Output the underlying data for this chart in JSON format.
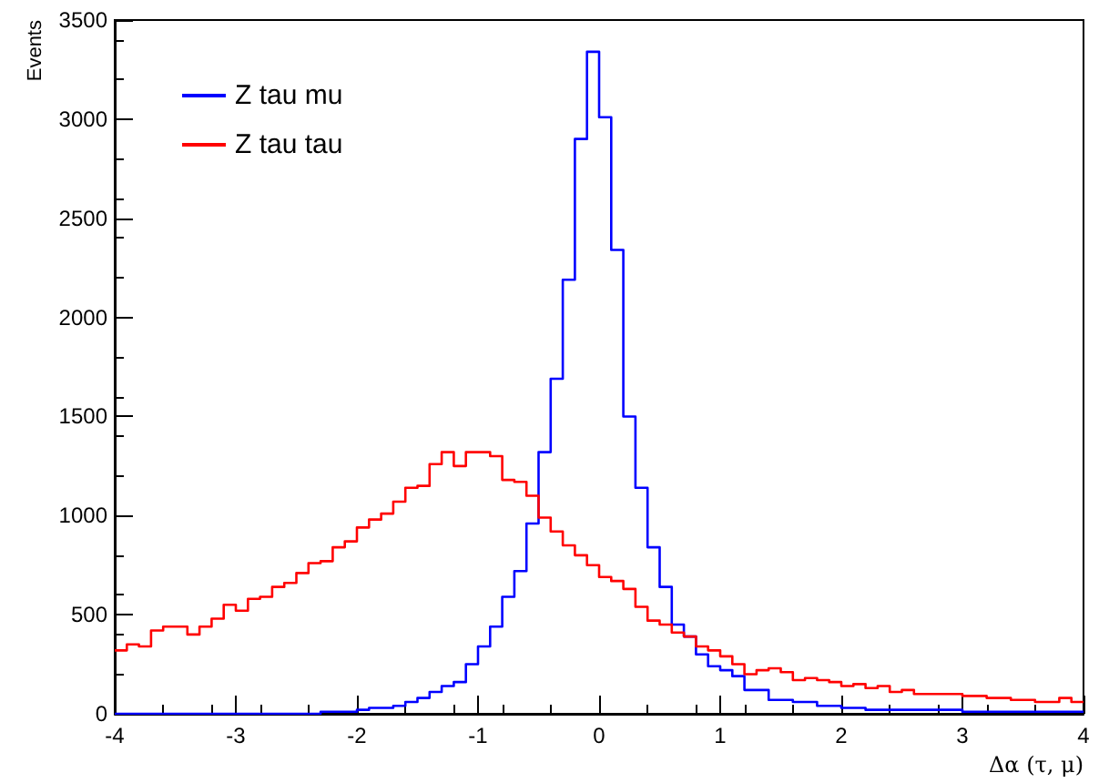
{
  "chart_data": {
    "type": "histogram",
    "xlabel": "Δα (τ, μ)",
    "ylabel": "Events",
    "bins": [
      -4.0,
      -3.9,
      -3.8,
      -3.7,
      -3.6,
      -3.5,
      -3.4,
      -3.3,
      -3.2,
      -3.1,
      -3.0,
      -2.9,
      -2.8,
      -2.7,
      -2.6,
      -2.5,
      -2.4,
      -2.3,
      -2.2,
      -2.1,
      -2.0,
      -1.9,
      -1.8,
      -1.7,
      -1.6,
      -1.5,
      -1.4,
      -1.3,
      -1.2,
      -1.1,
      -1.0,
      -0.9,
      -0.8,
      -0.7,
      -0.6,
      -0.5,
      -0.4,
      -0.3,
      -0.2,
      -0.1,
      0.0,
      0.1,
      0.2,
      0.3,
      0.4,
      0.5,
      0.6,
      0.7,
      0.8,
      0.9,
      1.0,
      1.1,
      1.2,
      1.3,
      1.4,
      1.5,
      1.6,
      1.7,
      1.8,
      1.9,
      2.0,
      2.1,
      2.2,
      2.3,
      2.4,
      2.5,
      2.6,
      2.7,
      2.8,
      2.9,
      3.0,
      3.1,
      3.2,
      3.3,
      3.4,
      3.5,
      3.6,
      3.7,
      3.8,
      3.9,
      4.0
    ],
    "series": [
      {
        "name": "Z tau mu",
        "color": "#0000ff",
        "values": [
          0,
          0,
          0,
          0,
          0,
          0,
          0,
          0,
          0,
          0,
          0,
          0,
          0,
          0,
          0,
          0,
          0,
          10,
          10,
          10,
          20,
          30,
          30,
          40,
          60,
          80,
          110,
          140,
          160,
          250,
          340,
          440,
          590,
          720,
          960,
          1320,
          1690,
          2190,
          2900,
          3340,
          3010,
          2340,
          1500,
          1140,
          840,
          640,
          450,
          390,
          300,
          240,
          220,
          190,
          120,
          120,
          70,
          70,
          60,
          60,
          40,
          40,
          30,
          30,
          20,
          20,
          20,
          20,
          20,
          20,
          20,
          20,
          10,
          10,
          10,
          10,
          10,
          10,
          10,
          10,
          10,
          10
        ]
      },
      {
        "name": "Z tau tau",
        "color": "#ff0000",
        "values": [
          320,
          350,
          340,
          420,
          440,
          440,
          400,
          440,
          480,
          550,
          520,
          580,
          590,
          640,
          660,
          710,
          760,
          770,
          840,
          870,
          940,
          980,
          1010,
          1070,
          1140,
          1150,
          1260,
          1320,
          1250,
          1320,
          1320,
          1300,
          1180,
          1170,
          1100,
          990,
          920,
          850,
          800,
          750,
          690,
          670,
          630,
          540,
          470,
          450,
          410,
          390,
          340,
          320,
          290,
          250,
          200,
          220,
          230,
          210,
          170,
          180,
          170,
          160,
          140,
          150,
          130,
          140,
          110,
          120,
          100,
          100,
          100,
          100,
          90,
          90,
          80,
          80,
          70,
          70,
          60,
          60,
          80,
          60
        ]
      }
    ],
    "xlim": [
      -4,
      4
    ],
    "xticks": [
      -4,
      -3,
      -2,
      -1,
      0,
      1,
      2,
      3,
      4
    ],
    "ylim": [
      0,
      3500
    ],
    "yticks": [
      0,
      500,
      1000,
      1500,
      2000,
      2500,
      3000,
      3500
    ],
    "legend": "top left"
  }
}
